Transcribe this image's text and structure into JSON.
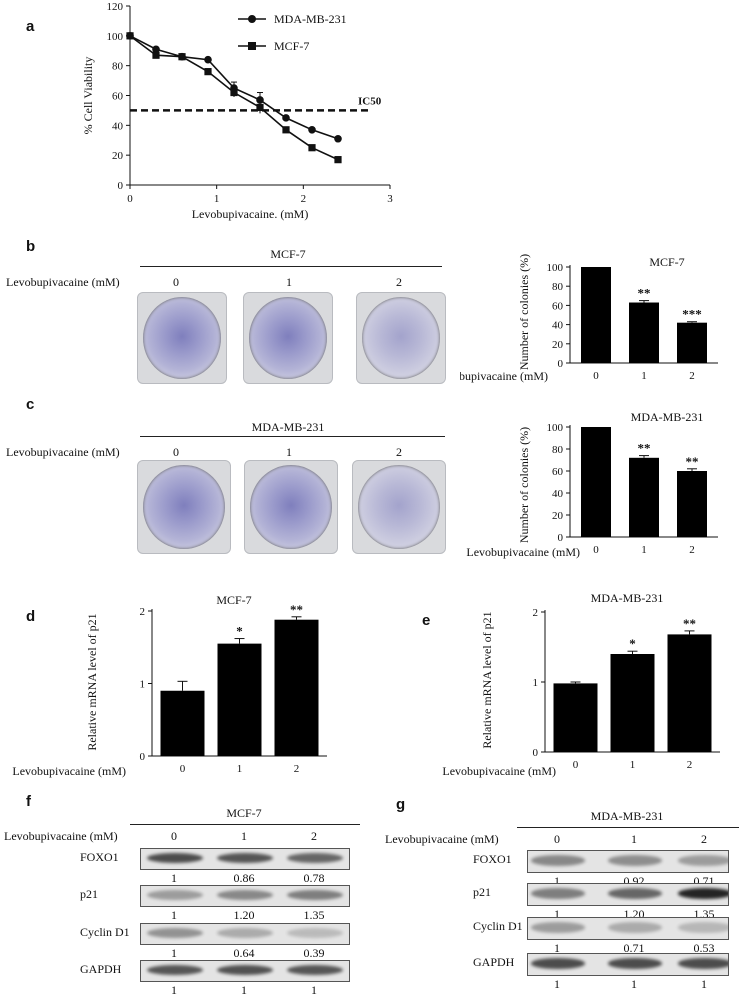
{
  "panels": {
    "a": {
      "label": "a",
      "ic50_label": "IC50"
    },
    "b": {
      "label": "b",
      "title": "MCF-7",
      "dose_label": "Levobupivacaine (mM)",
      "doses": [
        "0",
        "1",
        "2"
      ]
    },
    "c": {
      "label": "c",
      "title": "MDA-MB-231",
      "dose_label": "Levobupivacaine (mM)",
      "doses": [
        "0",
        "1",
        "2"
      ]
    },
    "d": {
      "label": "d"
    },
    "e": {
      "label": "e"
    },
    "f": {
      "label": "f",
      "title": "MCF-7",
      "dose_label": "Levobupivacaine (mM)",
      "doses": [
        "0",
        "1",
        "2"
      ],
      "blots": [
        {
          "name": "FOXO1",
          "values": [
            "1",
            "0.86",
            "0.78"
          ],
          "intensity": [
            0.75,
            0.7,
            0.62
          ]
        },
        {
          "name": "p21",
          "values": [
            "1",
            "1.20",
            "1.35"
          ],
          "intensity": [
            0.35,
            0.45,
            0.5
          ]
        },
        {
          "name": "Cyclin D1",
          "values": [
            "1",
            "0.64",
            "0.39"
          ],
          "intensity": [
            0.4,
            0.28,
            0.2
          ]
        },
        {
          "name": "GAPDH",
          "values": [
            "1",
            "1",
            "1"
          ],
          "intensity": [
            0.7,
            0.72,
            0.7
          ]
        }
      ]
    },
    "g": {
      "label": "g",
      "title": "MDA-MB-231",
      "dose_label": "Levobupivacaine (mM)",
      "doses": [
        "0",
        "1",
        "2"
      ],
      "blots": [
        {
          "name": "FOXO1",
          "values": [
            "1",
            "0.92",
            "0.71"
          ],
          "intensity": [
            0.45,
            0.42,
            0.35
          ]
        },
        {
          "name": "p21",
          "values": [
            "1",
            "1.20",
            "1.35"
          ],
          "intensity": [
            0.5,
            0.62,
            0.95
          ]
        },
        {
          "name": "Cyclin D1",
          "values": [
            "1",
            "0.71",
            "0.53"
          ],
          "intensity": [
            0.35,
            0.28,
            0.22
          ]
        },
        {
          "name": "GAPDH",
          "values": [
            "1",
            "1",
            "1"
          ],
          "intensity": [
            0.75,
            0.75,
            0.75
          ]
        }
      ]
    }
  },
  "colors": {
    "ink": "#111111",
    "bar": "#000000",
    "band": "#1a1a1a"
  },
  "chart_data": [
    {
      "id": "a",
      "type": "line",
      "xlabel": "Levobupivacaine. (mM)",
      "ylabel": "% Cell Viability",
      "xlim": [
        0,
        3
      ],
      "ylim": [
        0,
        120
      ],
      "xticks": [
        0,
        1,
        2,
        3
      ],
      "yticks": [
        0,
        20,
        40,
        60,
        80,
        100,
        120
      ],
      "ic50": 50,
      "legend_position": "top-right",
      "series": [
        {
          "name": "MDA-MB-231",
          "marker": "circle",
          "x": [
            0,
            0.3,
            0.6,
            0.9,
            1.2,
            1.5,
            1.8,
            2.1,
            2.4
          ],
          "y": [
            100,
            91,
            86,
            84,
            65,
            57,
            45,
            37,
            31
          ],
          "err": [
            0,
            1,
            1,
            1,
            4,
            5,
            1,
            1,
            1
          ]
        },
        {
          "name": "MCF-7",
          "marker": "square",
          "x": [
            0,
            0.3,
            0.6,
            0.9,
            1.2,
            1.5,
            1.8,
            2.1,
            2.4
          ],
          "y": [
            100,
            87,
            86,
            76,
            62,
            52,
            37,
            25,
            17
          ],
          "err": [
            0,
            1,
            1,
            1,
            3,
            4,
            1,
            1,
            1
          ]
        }
      ]
    },
    {
      "id": "b-bar",
      "type": "bar",
      "title": "MCF-7",
      "ylabel": "Number of colonies (%)",
      "xlabel": "Levobupivacaine (mM)",
      "categories": [
        "0",
        "1",
        "2"
      ],
      "values": [
        100,
        63,
        42
      ],
      "err": [
        0,
        2,
        1
      ],
      "sig": [
        "",
        "**",
        "***"
      ],
      "ylim": [
        0,
        100
      ],
      "yticks": [
        0,
        20,
        40,
        60,
        80,
        100
      ]
    },
    {
      "id": "c-bar",
      "type": "bar",
      "title": "MDA-MB-231",
      "ylabel": "Number of colonies (%)",
      "xlabel": "Levobupivacaine (mM)",
      "categories": [
        "0",
        "1",
        "2"
      ],
      "values": [
        100,
        72,
        60
      ],
      "err": [
        0,
        2,
        2
      ],
      "sig": [
        "",
        "**",
        "**"
      ],
      "ylim": [
        0,
        100
      ],
      "yticks": [
        0,
        20,
        40,
        60,
        80,
        100
      ]
    },
    {
      "id": "d",
      "type": "bar",
      "title": "MCF-7",
      "ylabel": "Relative mRNA level of p21",
      "xlabel": "Levobupivacaine (mM)",
      "categories": [
        "0",
        "1",
        "2"
      ],
      "values": [
        0.9,
        1.55,
        1.88
      ],
      "err": [
        0.13,
        0.07,
        0.04
      ],
      "sig": [
        "",
        "*",
        "**"
      ],
      "ylim": [
        0,
        2
      ],
      "yticks": [
        0,
        1,
        2
      ]
    },
    {
      "id": "e",
      "type": "bar",
      "title": "MDA-MB-231",
      "ylabel": "Relative mRNA level of p21",
      "xlabel": "Levobupivacaine (mM)",
      "categories": [
        "0",
        "1",
        "2"
      ],
      "values": [
        0.98,
        1.4,
        1.68
      ],
      "err": [
        0.02,
        0.04,
        0.05
      ],
      "sig": [
        "",
        "*",
        "**"
      ],
      "ylim": [
        0,
        2
      ],
      "yticks": [
        0,
        1,
        2
      ]
    }
  ]
}
